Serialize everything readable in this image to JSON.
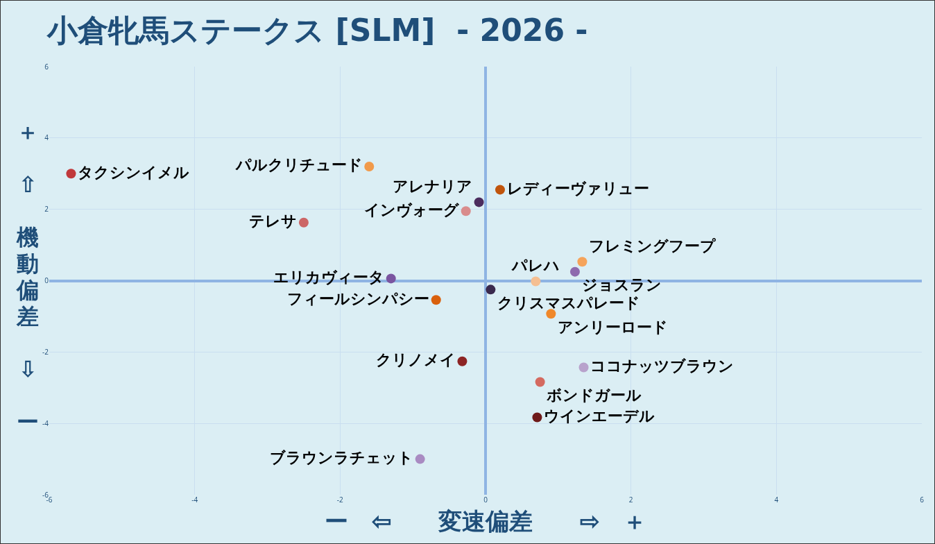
{
  "chart_data": {
    "type": "scatter",
    "title": "小倉牝馬ステークス [SLM]  - 2026 -",
    "xlabel": "ー　⇦　　変速偏差　　⇨　＋",
    "ylabel": "＋　⇧　機動偏差　⇩　ー",
    "xlim": [
      -6,
      6
    ],
    "ylim": [
      -6,
      6
    ],
    "xticks": [
      -6,
      -4,
      -2,
      0,
      2,
      4,
      6
    ],
    "yticks": [
      -6,
      -4,
      -2,
      0,
      2,
      4,
      6
    ],
    "grid": true,
    "legend": false,
    "marker": "circle",
    "series": [
      {
        "name": "タクシンイメル",
        "color": "#c0393b",
        "x": [
          -5.7
        ],
        "values": [
          3.0
        ]
      },
      {
        "name": "パルクリチュード",
        "color": "#f19a4a",
        "x": [
          -1.6
        ],
        "values": [
          3.2
        ]
      },
      {
        "name": "アレナリア",
        "color": "#4b2c5e",
        "x": [
          -0.09
        ],
        "values": [
          2.2
        ]
      },
      {
        "name": "レディーヴァリュー",
        "color": "#c0540c",
        "x": [
          0.2
        ],
        "values": [
          2.55
        ]
      },
      {
        "name": "インヴォーグ",
        "color": "#d98c8c",
        "x": [
          -0.27
        ],
        "values": [
          1.95
        ]
      },
      {
        "name": "テレサ",
        "color": "#cc6666",
        "x": [
          -2.5
        ],
        "values": [
          1.63
        ]
      },
      {
        "name": "フレミングフープ",
        "color": "#f5a35a",
        "x": [
          1.33
        ],
        "values": [
          0.53
        ]
      },
      {
        "name": "ジョスラン",
        "color": "#8e6aae",
        "x": [
          1.23
        ],
        "values": [
          0.25
        ]
      },
      {
        "name": "パレハ",
        "color": "#f5bf92",
        "x": [
          0.69
        ],
        "values": [
          -0.02
        ]
      },
      {
        "name": "エリカヴィータ",
        "color": "#7a55a0",
        "x": [
          -1.3
        ],
        "values": [
          0.06
        ]
      },
      {
        "name": "クリスマスパレード",
        "color": "#3a2a4e",
        "x": [
          0.07
        ],
        "values": [
          -0.25
        ]
      },
      {
        "name": "フィールシンパシー",
        "color": "#d9600c",
        "x": [
          -0.68
        ],
        "values": [
          -0.54
        ]
      },
      {
        "name": "アンリーロード",
        "color": "#f0882a",
        "x": [
          0.9
        ],
        "values": [
          -0.93
        ]
      },
      {
        "name": "クリノメイ",
        "color": "#8c2424",
        "x": [
          -0.32
        ],
        "values": [
          -2.26
        ]
      },
      {
        "name": "ココナッツブラウン",
        "color": "#b8a2cc",
        "x": [
          1.35
        ],
        "values": [
          -2.43
        ]
      },
      {
        "name": "ボンドガール",
        "color": "#d46a60",
        "x": [
          0.75
        ],
        "values": [
          -2.84
        ]
      },
      {
        "name": "ウインエーデル",
        "color": "#6e1a1a",
        "x": [
          0.71
        ],
        "values": [
          -3.83
        ]
      },
      {
        "name": "ブラウンラチェット",
        "color": "#a98bc2",
        "x": [
          -0.9
        ],
        "values": [
          -5.0
        ]
      }
    ]
  }
}
